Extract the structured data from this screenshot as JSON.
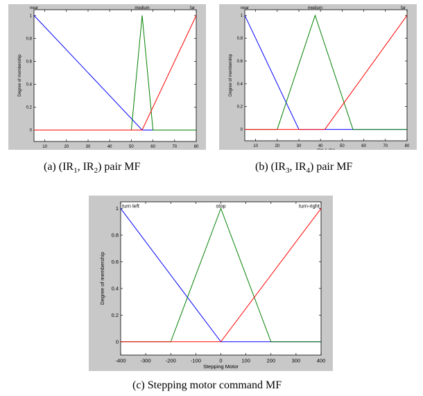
{
  "captions": {
    "a": {
      "prefix": "(a) (IR",
      "sub1": "1",
      "mid": ", IR",
      "sub2": "2",
      "suffix": ") pair MF"
    },
    "b": {
      "prefix": "(b) (IR",
      "sub1": "3",
      "mid": ", IR",
      "sub2": "4",
      "suffix": ") pair MF"
    },
    "c": {
      "text": "(c) Stepping motor command MF"
    }
  },
  "chart_data": [
    {
      "id": "a",
      "type": "line",
      "xlabel": "IR1 & IR2",
      "ylabel": "Degree of membership",
      "xlim": [
        5,
        80
      ],
      "ylim": [
        -0.1,
        1.05
      ],
      "xticks": [
        10,
        20,
        30,
        40,
        50,
        60,
        70,
        80
      ],
      "yticks": [
        0,
        0.2,
        0.4,
        0.6,
        0.8,
        1
      ],
      "series": [
        {
          "name": "near",
          "color": "#0000ff",
          "x": [
            5,
            55,
            80
          ],
          "y": [
            1,
            0,
            0
          ],
          "label_x": 5
        },
        {
          "name": "medium",
          "color": "#008000",
          "x": [
            5,
            50,
            55,
            60,
            80
          ],
          "y": [
            0,
            0,
            1,
            0,
            0
          ],
          "label_x": 55
        },
        {
          "name": "far",
          "color": "#ff0000",
          "x": [
            5,
            55,
            80
          ],
          "y": [
            0,
            0,
            1
          ],
          "label_x": 80
        }
      ]
    },
    {
      "id": "b",
      "type": "line",
      "xlabel": "IR3 & IR4",
      "ylabel": "Degree of membership",
      "xlim": [
        5,
        80
      ],
      "ylim": [
        -0.1,
        1.05
      ],
      "xticks": [
        10,
        20,
        30,
        40,
        50,
        60,
        70,
        80
      ],
      "yticks": [
        0,
        0.2,
        0.4,
        0.6,
        0.8,
        1
      ],
      "series": [
        {
          "name": "near",
          "color": "#0000ff",
          "x": [
            5,
            30,
            80
          ],
          "y": [
            1,
            0,
            0
          ],
          "label_x": 5
        },
        {
          "name": "medium",
          "color": "#008000",
          "x": [
            5,
            20,
            37.5,
            55,
            80
          ],
          "y": [
            0,
            0,
            1,
            0,
            0
          ],
          "label_x": 37.5
        },
        {
          "name": "far",
          "color": "#ff0000",
          "x": [
            5,
            42,
            80
          ],
          "y": [
            0,
            0,
            1
          ],
          "label_x": 80
        }
      ]
    },
    {
      "id": "c",
      "type": "line",
      "xlabel": "Stepping Motor",
      "ylabel": "Degree of membership",
      "xlim": [
        -400,
        400
      ],
      "ylim": [
        -0.1,
        1.05
      ],
      "xticks": [
        -400,
        -300,
        -200,
        -100,
        0,
        100,
        200,
        300,
        400
      ],
      "yticks": [
        0,
        0.2,
        0.4,
        0.6,
        0.8,
        1
      ],
      "series": [
        {
          "name": "turn left",
          "color": "#0000ff",
          "x": [
            -400,
            0,
            400
          ],
          "y": [
            1,
            0,
            0
          ],
          "label_x": -400
        },
        {
          "name": "stop",
          "color": "#008000",
          "x": [
            -400,
            -200,
            0,
            200,
            400
          ],
          "y": [
            0,
            0,
            1,
            0,
            0
          ],
          "label_x": 0
        },
        {
          "name": "turn-right",
          "color": "#ff0000",
          "x": [
            -400,
            0,
            400
          ],
          "y": [
            0,
            0,
            1
          ],
          "label_x": 400
        }
      ]
    }
  ]
}
